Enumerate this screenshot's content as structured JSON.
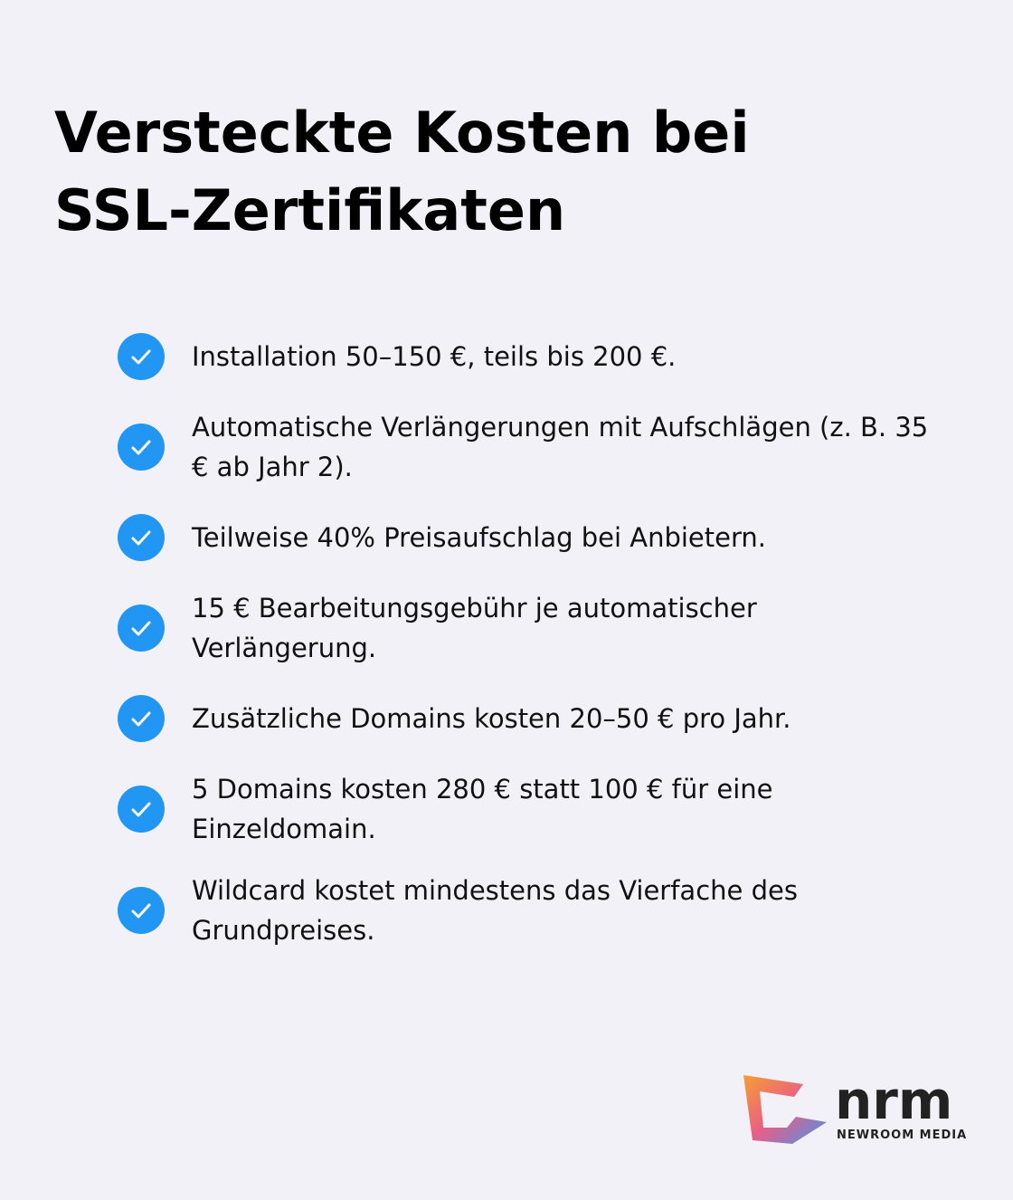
{
  "title": "Versteckte Kosten bei SSL-Zertifikaten",
  "items": [
    "Installation 50–150 €, teils bis 200 €.",
    "Automatische Verlängerungen mit Aufschlägen (z. B. 35 € ab Jahr 2).",
    "Teilweise 40% Preisaufschlag bei Anbietern.",
    "15 € Bearbeitungsgebühr je automatischer Verlängerung.",
    "Zusätzliche Domains kosten 20–50 € pro Jahr.",
    "5 Domains kosten 280 € statt 100 € für eine Einzeldomain.",
    "Wildcard kostet mindestens das Vierfache des Grundpreises."
  ],
  "logo": {
    "name": "nrm",
    "tagline": "NEWROOM MEDIA"
  }
}
